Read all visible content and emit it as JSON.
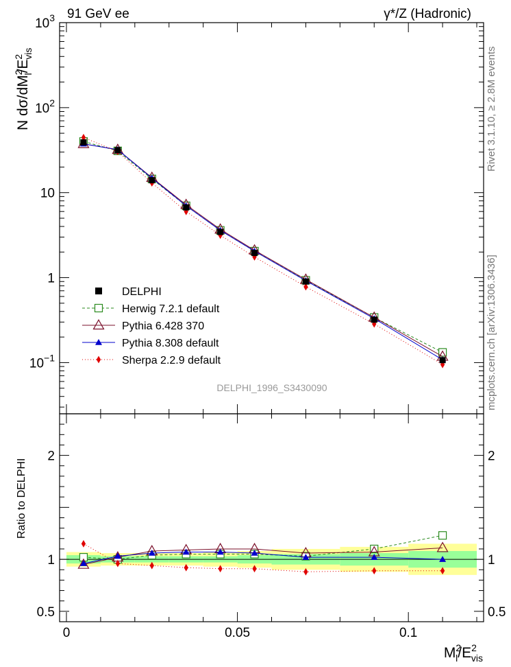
{
  "chart_data": {
    "type": "line",
    "title_left": "91 GeV ee",
    "title_right": "γ*/Z (Hadronic)",
    "ylabel_top": "N dσ/dM²_l/E²_vis",
    "ylabel_ratio": "Ratio to DELPHI",
    "xlabel": "M²_l/E²_vis",
    "watermark": "DELPHI_1996_S3430090",
    "side_text_top": "Rivet 3.1.10, ≥ 2.8M events",
    "side_text_bottom": "mcplots.cern.ch [arXiv:1306.3436]",
    "xlim": [
      -0.002,
      0.122
    ],
    "ylim_top_log": [
      0.025,
      1000
    ],
    "ylim_ratio": [
      0.4,
      2.4
    ],
    "x_ticks": [
      {
        "v": 0,
        "label": "0"
      },
      {
        "v": 0.05,
        "label": "0.05"
      },
      {
        "v": 0.1,
        "label": "0.1"
      }
    ],
    "y_ticks_top": [
      {
        "v": 1000,
        "base": "10",
        "exp": "3"
      },
      {
        "v": 100,
        "base": "10",
        "exp": "2"
      },
      {
        "v": 10,
        "base": "10",
        "exp": ""
      },
      {
        "v": 1,
        "base": "1",
        "exp": ""
      },
      {
        "v": 0.1,
        "base": "10",
        "exp": "−1"
      }
    ],
    "y_ticks_ratio": [
      {
        "v": 2,
        "label": "2"
      },
      {
        "v": 1,
        "label": "1"
      },
      {
        "v": 0.5,
        "label": "0.5"
      }
    ],
    "x": [
      0.005,
      0.015,
      0.025,
      0.035,
      0.045,
      0.055,
      0.07,
      0.09,
      0.11
    ],
    "bin_edges": [
      0,
      0.01,
      0.02,
      0.03,
      0.04,
      0.05,
      0.06,
      0.08,
      0.1,
      0.12
    ],
    "data": {
      "name": "DELPHI",
      "values": [
        39,
        31.5,
        14,
        6.7,
        3.45,
        1.95,
        0.9,
        0.32,
        0.107
      ],
      "band_green": [
        0.04,
        0.03,
        0.03,
        0.03,
        0.03,
        0.04,
        0.05,
        0.06,
        0.08
      ],
      "band_yellow": [
        0.07,
        0.06,
        0.06,
        0.06,
        0.07,
        0.08,
        0.1,
        0.12,
        0.15
      ]
    },
    "series": [
      {
        "name": "Herwig 7.2.1 default",
        "color": "#2a8a1e",
        "marker": "open-square",
        "dash": "4,3",
        "values": [
          40,
          31,
          14.5,
          7.0,
          3.6,
          2.05,
          0.93,
          0.34,
          0.132
        ],
        "ratio": [
          1.02,
          1.0,
          1.04,
          1.05,
          1.05,
          1.05,
          1.03,
          1.1,
          1.23
        ]
      },
      {
        "name": "Pythia 6.428 370",
        "color": "#7a0f2a",
        "marker": "open-triangle",
        "dash": "",
        "values": [
          37.5,
          32.0,
          15.0,
          7.2,
          3.7,
          2.1,
          0.95,
          0.34,
          0.118
        ],
        "ratio": [
          0.95,
          1.02,
          1.08,
          1.09,
          1.1,
          1.1,
          1.06,
          1.07,
          1.11
        ]
      },
      {
        "name": "Pythia 8.308 default",
        "color": "#0000cc",
        "marker": "filled-triangle",
        "dash": "",
        "values": [
          37.5,
          32.0,
          14.8,
          7.0,
          3.6,
          2.05,
          0.92,
          0.33,
          0.108
        ],
        "ratio": [
          0.96,
          1.03,
          1.06,
          1.07,
          1.07,
          1.06,
          1.02,
          1.02,
          1.0
        ]
      },
      {
        "name": "Sherpa 2.2.9 default",
        "color": "#e00000",
        "marker": "filled-diamond",
        "dash": "1,3",
        "values": [
          44.5,
          30.5,
          13.0,
          6.0,
          3.15,
          1.75,
          0.78,
          0.285,
          0.095
        ],
        "ratio": [
          1.15,
          0.96,
          0.94,
          0.92,
          0.91,
          0.91,
          0.88,
          0.89,
          0.89
        ]
      }
    ]
  }
}
